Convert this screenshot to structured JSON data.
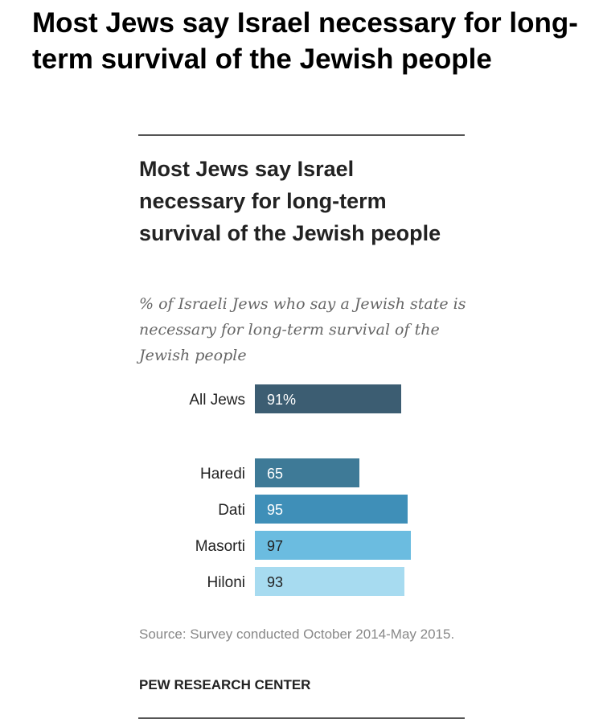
{
  "headline": "Most Jews say Israel necessary for long-term survival of the Jewish people",
  "source": "Source: Survey conducted October 2014-May 2015.",
  "organization": "PEW RESEARCH CENTER",
  "colors": {
    "all_jews": "#3c5d72",
    "haredi": "#3e7a97",
    "dati": "#3f8fb8",
    "masorti": "#6bbce0",
    "hiloni": "#a7dbf0"
  },
  "chart_data": {
    "type": "bar",
    "orientation": "horizontal",
    "title": "Most Jews say Israel necessary for long-term survival of the Jewish people",
    "subtitle": "% of Israeli Jews who say a Jewish state is necessary for long-term survival of the Jewish people",
    "categories": [
      "All Jews",
      "Haredi",
      "Dati",
      "Masorti",
      "Hiloni"
    ],
    "values": [
      91,
      65,
      95,
      97,
      93
    ],
    "value_labels": [
      "91%",
      "65",
      "95",
      "97",
      "93"
    ],
    "colors": [
      "#3c5d72",
      "#3e7a97",
      "#3f8fb8",
      "#6bbce0",
      "#a7dbf0"
    ],
    "xlim": [
      0,
      100
    ],
    "grid": false,
    "legend": "none"
  }
}
